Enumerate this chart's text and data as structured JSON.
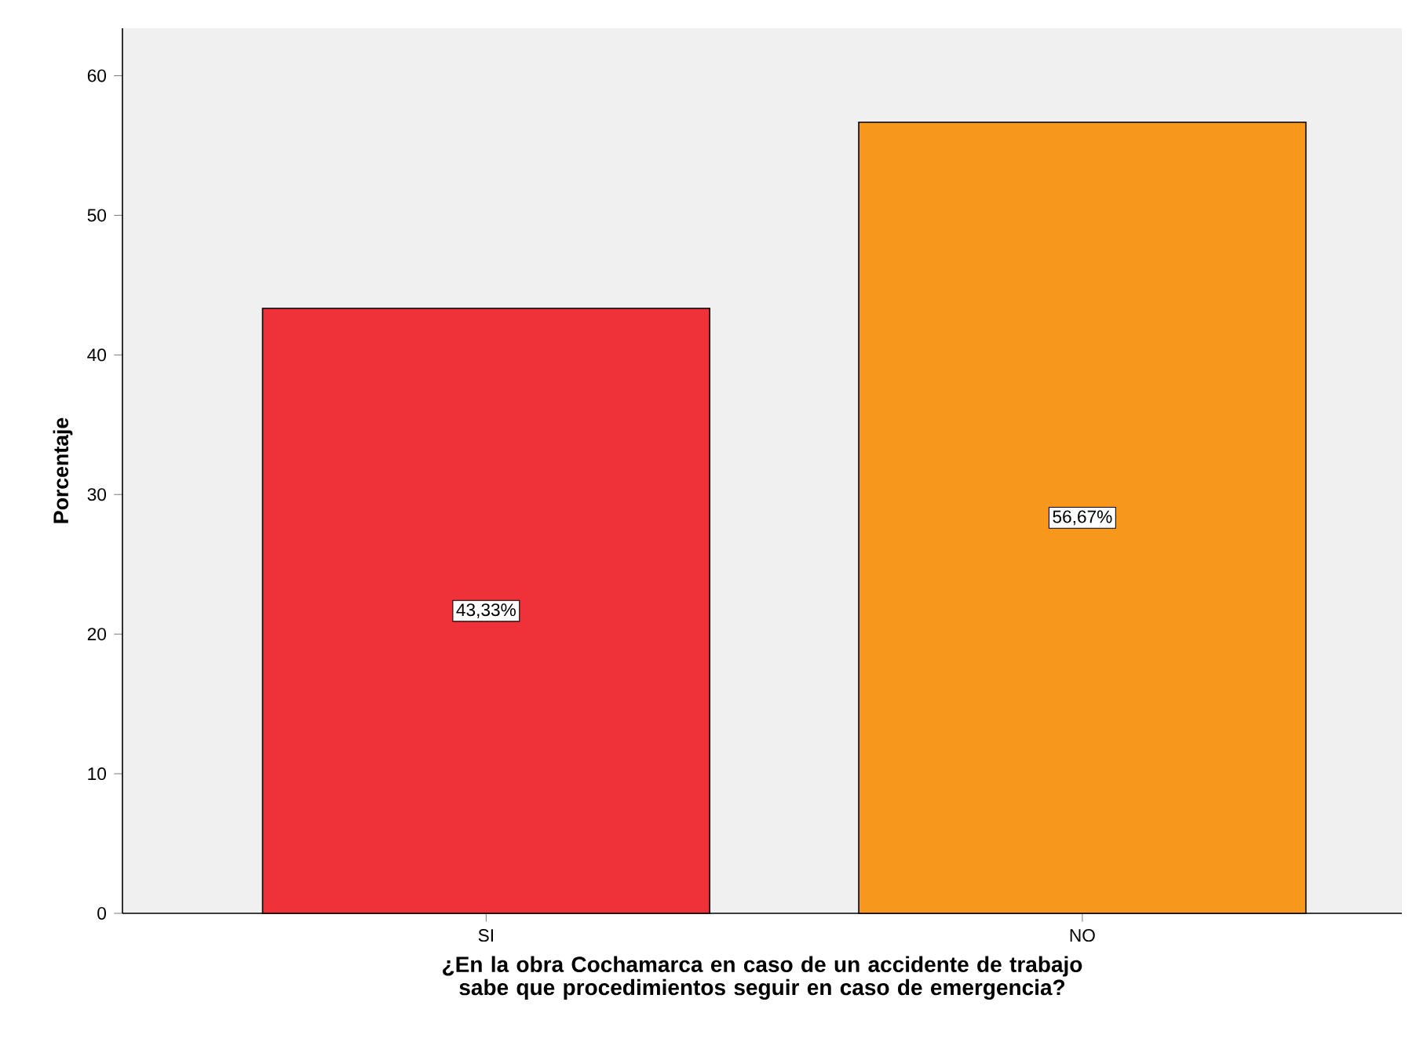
{
  "chart_data": {
    "type": "bar",
    "xlabel": "¿En la obra Cochamarca en caso de un accidente de trabajo sabe que procedimientos seguir en caso de emergencia?",
    "ylabel": "Porcentaje",
    "categories": [
      "SI",
      "NO"
    ],
    "values": [
      43.33,
      56.67
    ],
    "value_labels": [
      "43,33%",
      "56,67%"
    ],
    "colors": [
      "#ef323a",
      "#f7981d"
    ],
    "ylim": [
      0,
      63.4
    ],
    "yticks": [
      0,
      10,
      20,
      30,
      40,
      50,
      60
    ]
  }
}
